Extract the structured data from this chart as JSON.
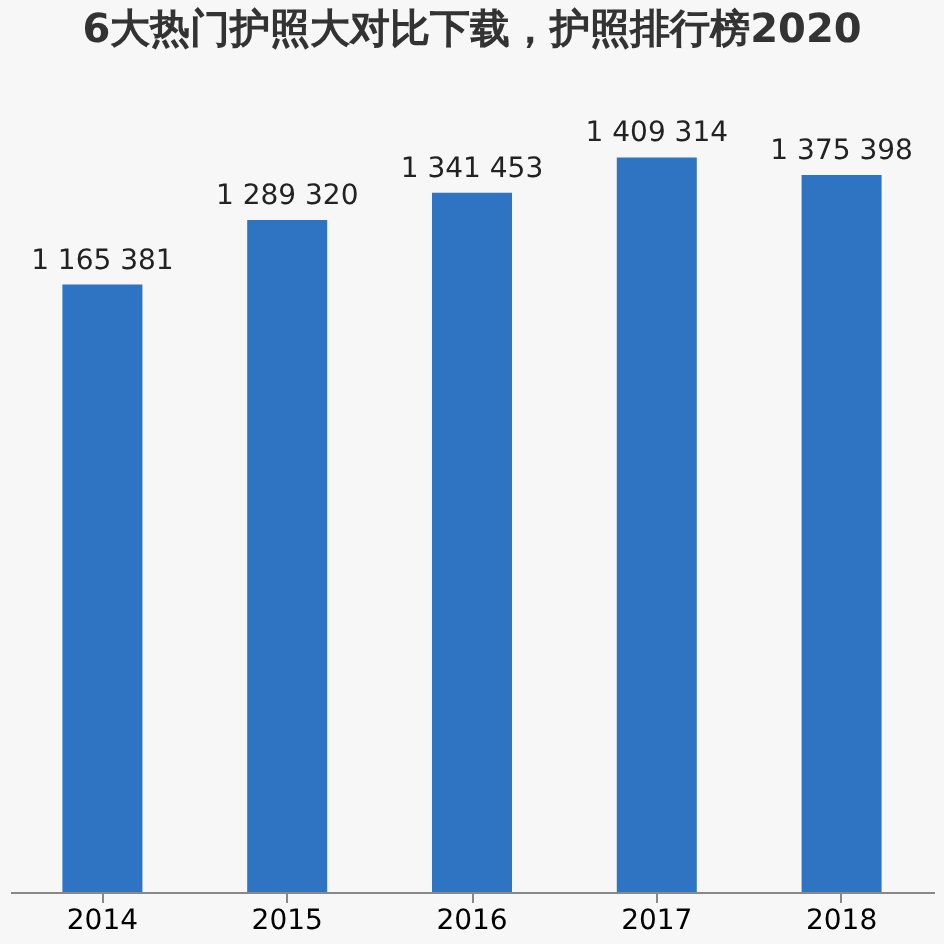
{
  "chart_data": {
    "type": "bar",
    "title": "6大热门护照大对比下载，护照排行榜2020",
    "categories": [
      "2014",
      "2015",
      "2016",
      "2017",
      "2018"
    ],
    "values": [
      1165381,
      1289320,
      1341453,
      1409314,
      1375398
    ],
    "color": "#2e74c2",
    "data_labels": true,
    "tick_labels": "x"
  }
}
